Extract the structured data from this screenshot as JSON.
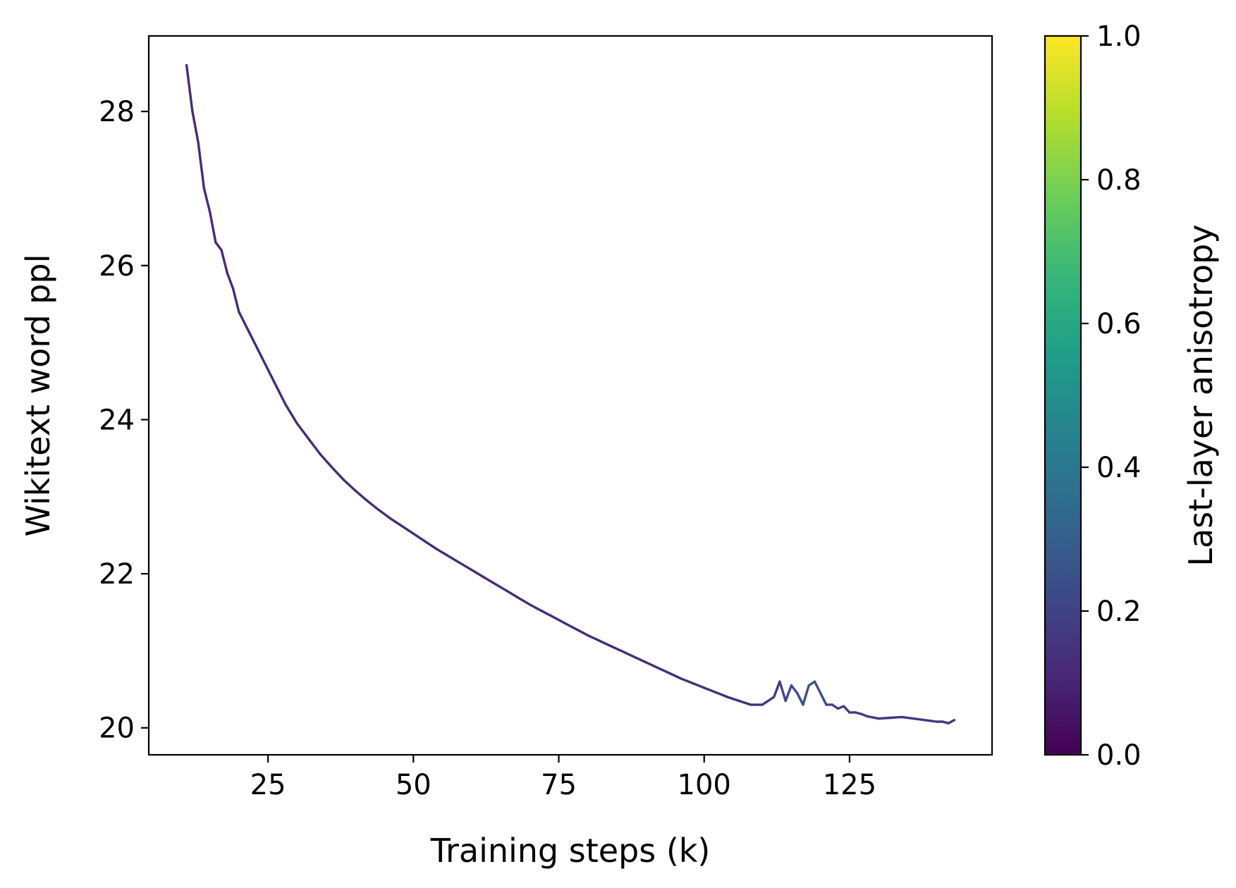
{
  "chart_data": {
    "type": "line",
    "title": "",
    "xlabel": "Training steps (k)",
    "ylabel": "Wikitext word ppl",
    "xlim": [
      4.5,
      149.5
    ],
    "ylim": [
      19.65,
      28.98
    ],
    "xticks": [
      25,
      50,
      75,
      100,
      125
    ],
    "xtick_labels": [
      "25",
      "50",
      "75",
      "100",
      "125"
    ],
    "yticks": [
      20,
      22,
      24,
      26,
      28
    ],
    "ytick_labels": [
      "20",
      "22",
      "24",
      "26",
      "28"
    ],
    "grid": false,
    "legend": "none",
    "colorbar": {
      "label": "Last-layer anisotropy",
      "colormap": "viridis",
      "range": [
        0.0,
        1.0
      ],
      "ticks": [
        0.0,
        0.2,
        0.4,
        0.6,
        0.8,
        1.0
      ],
      "tick_labels": [
        "0.0",
        "0.2",
        "0.4",
        "0.6",
        "0.8",
        "1.0"
      ],
      "colors": [
        "#440154",
        "#482878",
        "#3e4989",
        "#31688e",
        "#26828e",
        "#1f9e89",
        "#35b779",
        "#6ece58",
        "#b5de2b",
        "#fde725"
      ]
    },
    "series": [
      {
        "x": [
          11,
          12,
          13,
          14,
          15,
          16,
          17,
          18,
          19,
          20,
          22,
          24,
          26,
          28,
          30,
          32,
          34,
          36,
          38,
          40,
          42,
          44,
          46,
          48,
          50,
          52,
          54,
          56,
          58,
          60,
          62,
          64,
          66,
          68,
          70,
          72,
          74,
          76,
          78,
          80,
          82,
          84,
          86,
          88,
          90,
          92,
          94,
          96,
          98,
          100,
          102,
          104,
          106,
          108,
          110,
          111,
          112,
          113,
          114,
          115,
          116,
          117,
          118,
          119,
          120,
          121,
          122,
          123,
          124,
          125,
          126,
          127,
          128,
          130,
          132,
          134,
          136,
          138,
          140,
          141,
          142,
          143
        ],
        "y": [
          28.6,
          28.0,
          27.6,
          27.0,
          26.7,
          26.3,
          26.2,
          25.9,
          25.7,
          25.4,
          25.1,
          24.8,
          24.5,
          24.2,
          23.95,
          23.75,
          23.55,
          23.38,
          23.22,
          23.08,
          22.95,
          22.83,
          22.72,
          22.62,
          22.52,
          22.42,
          22.32,
          22.23,
          22.14,
          22.05,
          21.96,
          21.87,
          21.78,
          21.69,
          21.6,
          21.52,
          21.44,
          21.36,
          21.28,
          21.2,
          21.13,
          21.06,
          20.99,
          20.92,
          20.85,
          20.78,
          20.71,
          20.64,
          20.58,
          20.52,
          20.46,
          20.4,
          20.35,
          20.3,
          20.3,
          20.35,
          20.4,
          20.6,
          20.35,
          20.55,
          20.45,
          20.3,
          20.55,
          20.6,
          20.45,
          20.3,
          20.3,
          20.25,
          20.28,
          20.2,
          20.2,
          20.18,
          20.15,
          20.12,
          20.13,
          20.14,
          20.12,
          20.1,
          20.08,
          20.08,
          20.06,
          20.1
        ],
        "anisotropy": [
          0.12,
          0.12,
          0.12,
          0.12,
          0.12,
          0.12,
          0.12,
          0.12,
          0.12,
          0.12,
          0.12,
          0.12,
          0.12,
          0.12,
          0.12,
          0.12,
          0.12,
          0.12,
          0.12,
          0.12,
          0.12,
          0.12,
          0.12,
          0.12,
          0.12,
          0.12,
          0.12,
          0.12,
          0.12,
          0.12,
          0.12,
          0.12,
          0.12,
          0.12,
          0.12,
          0.12,
          0.12,
          0.12,
          0.12,
          0.12,
          0.12,
          0.12,
          0.12,
          0.12,
          0.12,
          0.12,
          0.12,
          0.12,
          0.13,
          0.13,
          0.13,
          0.13,
          0.13,
          0.13,
          0.14,
          0.15,
          0.17,
          0.2,
          0.22,
          0.24,
          0.25,
          0.24,
          0.25,
          0.26,
          0.25,
          0.22,
          0.2,
          0.18,
          0.17,
          0.16,
          0.16,
          0.16,
          0.16,
          0.16,
          0.16,
          0.16,
          0.16,
          0.16,
          0.16,
          0.16,
          0.16,
          0.16
        ]
      }
    ]
  }
}
